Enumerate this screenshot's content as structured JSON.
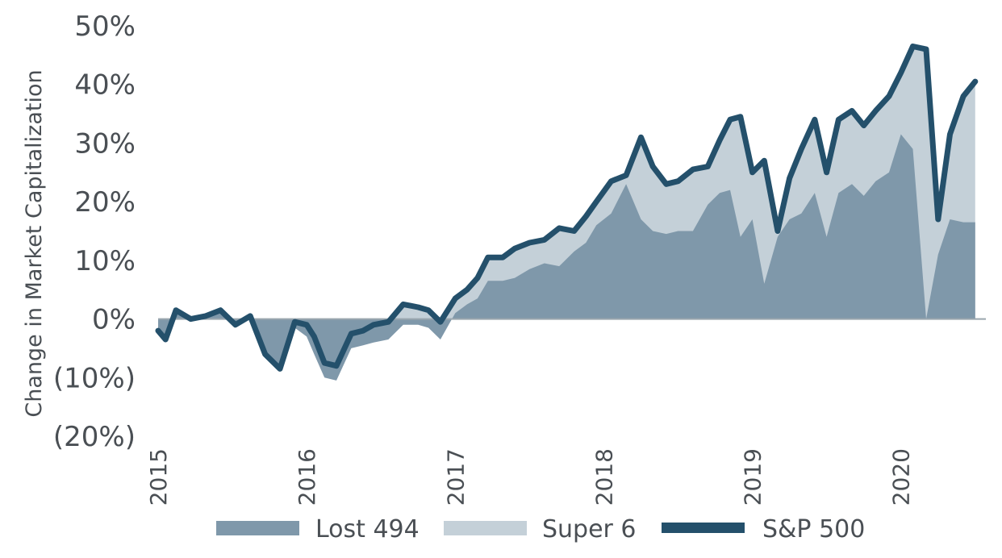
{
  "chart_data": {
    "type": "area",
    "title": "",
    "xlabel": "",
    "ylabel": "Change in Market Capitalization",
    "x": [
      2015.0,
      2015.05,
      2015.12,
      2015.22,
      2015.32,
      2015.42,
      2015.52,
      2015.62,
      2015.72,
      2015.82,
      2015.92,
      2016.0,
      2016.05,
      2016.12,
      2016.2,
      2016.3,
      2016.38,
      2016.45,
      2016.55,
      2016.65,
      2016.75,
      2016.82,
      2016.9,
      2017.0,
      2017.08,
      2017.15,
      2017.22,
      2017.32,
      2017.4,
      2017.5,
      2017.6,
      2017.7,
      2017.8,
      2017.88,
      2017.95,
      2018.05,
      2018.15,
      2018.25,
      2018.33,
      2018.42,
      2018.5,
      2018.6,
      2018.7,
      2018.78,
      2018.85,
      2018.92,
      2019.0,
      2019.08,
      2019.17,
      2019.25,
      2019.33,
      2019.42,
      2019.5,
      2019.58,
      2019.67,
      2019.75,
      2019.83,
      2019.92,
      2020.0,
      2020.08,
      2020.17,
      2020.25,
      2020.33,
      2020.42,
      2020.5
    ],
    "x_ticks": [
      "2015",
      "2016",
      "2017",
      "2018",
      "2019",
      "2020"
    ],
    "y_ticks": [
      "50%",
      "40%",
      "30%",
      "20%",
      "10%",
      "0%",
      "(10%)",
      "(20%)"
    ],
    "ylim": [
      -20,
      50
    ],
    "series": [
      {
        "name": "Lost 494",
        "style": "area",
        "color": "#7f98aa",
        "values": [
          -2,
          -3.5,
          1.5,
          0,
          0.5,
          1.5,
          -1,
          0.5,
          -6.5,
          -9,
          -1.5,
          -3,
          -6,
          -10,
          -10.5,
          -5,
          -4.5,
          -4,
          -3.5,
          -1,
          -1,
          -1.5,
          -3.5,
          1,
          2.5,
          3.5,
          6.5,
          6.5,
          7,
          8.5,
          9.5,
          9,
          11.5,
          13,
          16,
          18,
          23,
          17,
          15,
          14.5,
          15,
          15,
          19.5,
          21.5,
          22,
          14,
          17,
          6,
          14,
          17,
          18,
          21.5,
          14,
          21.5,
          23,
          21,
          23.5,
          25,
          31.5,
          29,
          0,
          11,
          17,
          16.5,
          16.5
        ]
      },
      {
        "name": "Super 6",
        "style": "area",
        "color": "#c4d0d8",
        "values": [
          -2,
          -3.5,
          1.5,
          0,
          0.5,
          1.5,
          -1,
          0.5,
          -6,
          -8.5,
          -0.5,
          -1,
          -3,
          -7.5,
          -8,
          -2.5,
          -2,
          -1,
          -0.5,
          2.5,
          2,
          1.5,
          -0.5,
          3.5,
          5,
          7,
          10.5,
          10.5,
          12,
          13,
          13.5,
          15.5,
          15,
          17.5,
          20,
          23.5,
          24.5,
          31,
          26,
          23,
          23.5,
          25.5,
          26,
          30.5,
          34,
          34.5,
          25,
          27,
          15,
          24,
          29,
          34,
          25,
          34,
          35.5,
          33,
          35.5,
          38,
          42,
          46.5,
          46,
          17,
          31.5,
          38,
          40.5
        ]
      },
      {
        "name": "S&P 500",
        "style": "line",
        "color": "#24506b",
        "values": [
          -2,
          -3.5,
          1.5,
          0,
          0.5,
          1.5,
          -1,
          0.5,
          -6,
          -8.5,
          -0.5,
          -1,
          -3,
          -7.5,
          -8,
          -2.5,
          -2,
          -1,
          -0.5,
          2.5,
          2,
          1.5,
          -0.5,
          3.5,
          5,
          7,
          10.5,
          10.5,
          12,
          13,
          13.5,
          15.5,
          15,
          17.5,
          20,
          23.5,
          24.5,
          31,
          26,
          23,
          23.5,
          25.5,
          26,
          30.5,
          34,
          34.5,
          25,
          27,
          15,
          24,
          29,
          34,
          25,
          34,
          35.5,
          33,
          35.5,
          38,
          42,
          46.5,
          46,
          17,
          31.5,
          38,
          40.5
        ]
      }
    ],
    "legend": [
      {
        "label": "Lost 494",
        "swatch": "area",
        "color": "#7f98aa"
      },
      {
        "label": "Super 6",
        "swatch": "area",
        "color": "#c4d0d8"
      },
      {
        "label": "S&P 500",
        "swatch": "line",
        "color": "#24506b"
      }
    ],
    "legend_position": "bottom",
    "grid": false
  }
}
